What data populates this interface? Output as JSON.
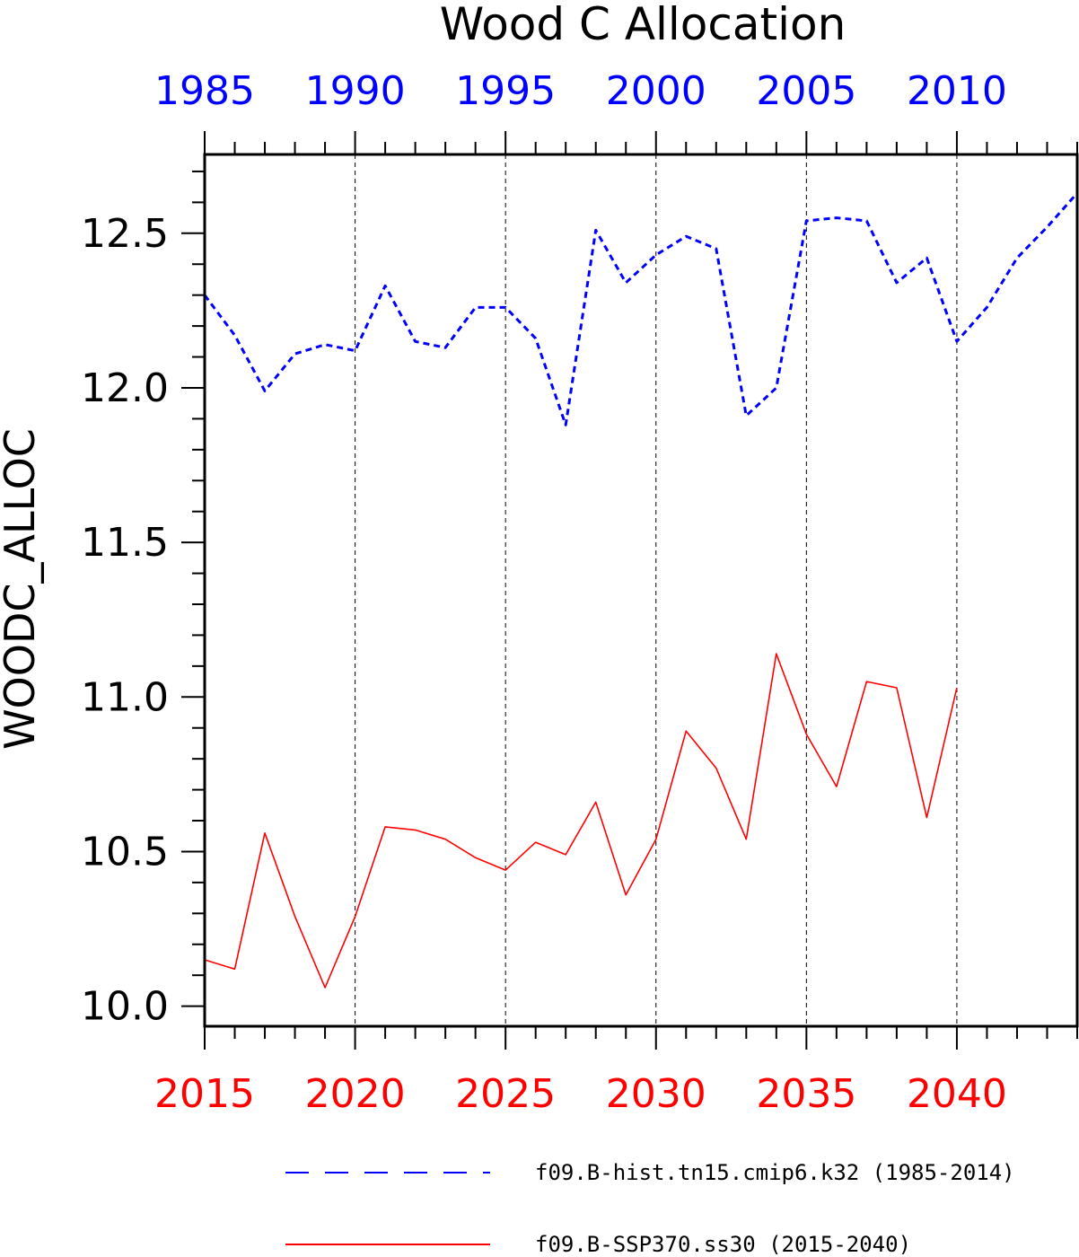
{
  "chart_data": {
    "type": "line",
    "title": "Wood C Allocation",
    "ylabel": "WOODC_ALLOC",
    "ylim": [
      9.935,
      12.755
    ],
    "yticks": [
      10.0,
      10.5,
      11.0,
      11.5,
      12.0,
      12.5
    ],
    "ytick_labels": [
      "10.0",
      "10.5",
      "11.0",
      "11.5",
      "12.0",
      "12.5"
    ],
    "bottom_axis": {
      "range": [
        2015,
        2044
      ],
      "major_ticks": [
        2015,
        2020,
        2025,
        2030,
        2035,
        2040
      ],
      "labels": [
        "2015",
        "2020",
        "2025",
        "2030",
        "2035",
        "2040"
      ],
      "color": "#ff0000"
    },
    "top_axis": {
      "range": [
        1985,
        2014
      ],
      "major_ticks": [
        1985,
        1990,
        1995,
        2000,
        2005,
        2010
      ],
      "labels": [
        "1985",
        "1990",
        "1995",
        "2000",
        "2005",
        "2010"
      ],
      "color": "#0000ff"
    },
    "gridlines_x": [
      2020,
      2025,
      2030,
      2035,
      2040
    ],
    "legend_position": "bottom",
    "series": [
      {
        "name": "f09.B-hist.tn15.cmip6.k32 (1985-2014)",
        "axis": "top",
        "color": "#0000ff",
        "style": "dashed",
        "x": [
          1985,
          1986,
          1987,
          1988,
          1989,
          1990,
          1991,
          1992,
          1993,
          1994,
          1995,
          1996,
          1997,
          1998,
          1999,
          2000,
          2001,
          2002,
          2003,
          2004,
          2005,
          2006,
          2007,
          2008,
          2009,
          2010,
          2011,
          2012,
          2013,
          2014
        ],
        "values": [
          12.3,
          12.17,
          11.99,
          12.11,
          12.14,
          12.12,
          12.33,
          12.15,
          12.13,
          12.26,
          12.26,
          12.16,
          11.88,
          12.51,
          12.34,
          12.43,
          12.49,
          12.45,
          11.91,
          12.0,
          12.54,
          12.55,
          12.54,
          12.34,
          12.42,
          12.15,
          12.26,
          12.42,
          12.52,
          12.63
        ]
      },
      {
        "name": "f09.B-SSP370.ss30 (2015-2040)",
        "axis": "bottom",
        "color": "#ff0000",
        "style": "solid",
        "x": [
          2015,
          2016,
          2017,
          2018,
          2019,
          2020,
          2021,
          2022,
          2023,
          2024,
          2025,
          2026,
          2027,
          2028,
          2029,
          2030,
          2031,
          2032,
          2033,
          2034,
          2035,
          2036,
          2037,
          2038,
          2039,
          2040
        ],
        "values": [
          10.15,
          10.12,
          10.56,
          10.29,
          10.06,
          10.29,
          10.58,
          10.57,
          10.54,
          10.48,
          10.44,
          10.53,
          10.49,
          10.66,
          10.36,
          10.54,
          10.89,
          10.77,
          10.54,
          11.14,
          10.88,
          10.71,
          11.05,
          11.03,
          10.61,
          11.03
        ]
      }
    ]
  }
}
